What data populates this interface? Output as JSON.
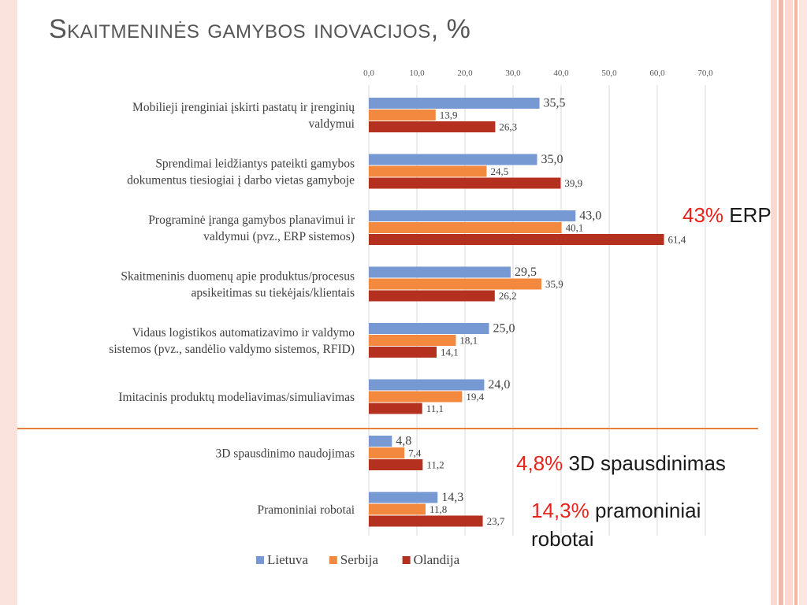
{
  "slide": {
    "title": "Skaitmeninės gamybos inovacijos, %"
  },
  "callouts": [
    {
      "pct": "43%",
      "text": " ERP",
      "text2": ""
    },
    {
      "pct": "4,8%",
      "text": " 3D spausdinimas",
      "text2": ""
    },
    {
      "pct": "14,3%",
      "text": " pramoniniai",
      "text2": "robotai"
    }
  ],
  "colors": {
    "Lietuva": "#7698d3",
    "Serbija": "#f3893f",
    "Olandija": "#b5311f",
    "callout_red": "#e8231a",
    "divider": "#e7803a"
  },
  "chart_data": {
    "type": "bar",
    "orientation": "horizontal",
    "title": "",
    "xlabel": "",
    "ylabel": "",
    "xlim": [
      0,
      70
    ],
    "ticks": [
      "0,0",
      "10,0",
      "20,0",
      "30,0",
      "40,0",
      "50,0",
      "60,0",
      "70,0"
    ],
    "tick_values": [
      0,
      10,
      20,
      30,
      40,
      50,
      60,
      70
    ],
    "grid": true,
    "legend": "bottom",
    "categories": [
      [
        "Mobilieji įrenginiai įskirti pastatų ir įrenginių",
        "valdymui"
      ],
      [
        "Sprendimai leidžiantys pateikti gamybos",
        "dokumentus tiesiogiai į darbo vietas gamyboje"
      ],
      [
        "Programinė įranga gamybos planavimui ir",
        "valdymui (pvz., ERP sistemos)"
      ],
      [
        "Skaitmeninis duomenų apie produktus/procesus",
        "apsikeitimas su tiekėjais/klientais"
      ],
      [
        "Vidaus logistikos automatizavimo ir valdymo",
        "sistemos (pvz., sandėlio valdymo sistemos, RFID)"
      ],
      [
        "Imitacinis produktų modeliavimas/simuliavimas"
      ],
      [
        "3D spausdinimo naudojimas"
      ],
      [
        "Pramoniniai robotai"
      ]
    ],
    "series": [
      {
        "name": "Lietuva",
        "values": [
          35.5,
          35.0,
          43.0,
          29.5,
          25.0,
          24.0,
          4.8,
          14.3
        ],
        "labels": [
          "35,5",
          "35,0",
          "43,0",
          "29,5",
          "25,0",
          "24,0",
          "4,8",
          "14,3"
        ]
      },
      {
        "name": "Serbija",
        "values": [
          13.9,
          24.5,
          40.1,
          35.9,
          18.1,
          19.4,
          7.4,
          11.8
        ],
        "labels": [
          "13,9",
          "24,5",
          "40,1",
          "35,9",
          "18,1",
          "19,4",
          "7,4",
          "11,8"
        ]
      },
      {
        "name": "Olandija",
        "values": [
          26.3,
          39.9,
          61.4,
          26.2,
          14.1,
          11.1,
          11.2,
          23.7
        ],
        "labels": [
          "26,3",
          "39,9",
          "61,4",
          "26,2",
          "14,1",
          "11,1",
          "11,2",
          "23,7"
        ]
      }
    ]
  }
}
